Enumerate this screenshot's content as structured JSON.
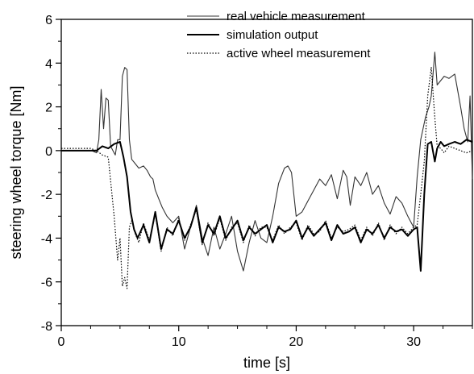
{
  "chart_data": {
    "type": "line",
    "xlabel": "time [s]",
    "ylabel": "steering wheel torque [Nm]",
    "xlim": [
      0,
      35
    ],
    "ylim": [
      -8,
      6
    ],
    "x_ticks": [
      0,
      10,
      20,
      30
    ],
    "y_ticks": [
      -8,
      -6,
      -4,
      -2,
      0,
      2,
      4,
      6
    ],
    "x_minor_step": 2.5,
    "y_minor_step": 1,
    "grid": false,
    "legend_position": "top-right",
    "series": [
      {
        "name": "real vehicle measurement",
        "style": "thin-solid",
        "color": "#333333",
        "x": [
          0,
          2.6,
          3.0,
          3.2,
          3.4,
          3.6,
          3.8,
          4.0,
          4.2,
          4.4,
          4.6,
          4.8,
          5.0,
          5.2,
          5.4,
          5.6,
          5.8,
          6.0,
          6.3,
          6.6,
          7.0,
          7.3,
          7.6,
          7.8,
          8.0,
          8.3,
          8.6,
          9.0,
          9.5,
          10.0,
          10.5,
          11.0,
          11.5,
          12.0,
          12.5,
          13.0,
          13.5,
          14.0,
          14.5,
          15.0,
          15.5,
          16.0,
          16.5,
          17.0,
          17.5,
          18.0,
          18.5,
          19.0,
          19.3,
          19.6,
          20.0,
          20.5,
          21.0,
          21.5,
          22.0,
          22.5,
          23.0,
          23.5,
          24.0,
          24.3,
          24.6,
          25.0,
          25.5,
          26.0,
          26.5,
          27.0,
          27.5,
          28.0,
          28.5,
          29.0,
          29.5,
          30.0,
          30.3,
          30.6,
          31.0,
          31.3,
          31.5,
          31.8,
          32.0,
          32.3,
          32.6,
          33.0,
          33.5,
          34.0,
          34.3,
          34.6,
          34.8,
          35.0
        ],
        "y": [
          0,
          0,
          -0.1,
          0.5,
          2.8,
          1.0,
          2.4,
          2.3,
          0.2,
          0,
          -0.2,
          0.5,
          0.5,
          3.4,
          3.8,
          3.7,
          0.5,
          -0.4,
          -0.6,
          -0.8,
          -0.7,
          -0.9,
          -1.2,
          -1.3,
          -1.8,
          -2.2,
          -2.6,
          -3.0,
          -3.3,
          -3.0,
          -4.5,
          -3.5,
          -2.5,
          -4.0,
          -4.8,
          -3.5,
          -4.5,
          -3.8,
          -3.0,
          -4.6,
          -5.5,
          -4.2,
          -3.2,
          -4.0,
          -4.2,
          -3.0,
          -1.5,
          -0.8,
          -0.7,
          -1.0,
          -3.0,
          -2.8,
          -2.3,
          -1.8,
          -1.3,
          -1.6,
          -1.1,
          -2.2,
          -0.9,
          -1.2,
          -2.5,
          -1.2,
          -1.6,
          -1.0,
          -2.0,
          -1.6,
          -2.4,
          -2.9,
          -2.1,
          -2.4,
          -3.0,
          -3.5,
          -1.2,
          0.5,
          1.5,
          2.0,
          2.5,
          4.5,
          3.0,
          3.2,
          3.4,
          3.3,
          3.5,
          2.0,
          1.0,
          0.4,
          2.5,
          -1.3
        ]
      },
      {
        "name": "simulation output",
        "style": "thick-solid",
        "color": "#000000",
        "x": [
          0,
          3.0,
          3.5,
          4.0,
          4.5,
          5.0,
          5.3,
          5.6,
          5.9,
          6.2,
          6.5,
          7.0,
          7.5,
          8.0,
          8.5,
          9.0,
          9.5,
          10.0,
          10.5,
          11.0,
          11.5,
          12.0,
          12.5,
          13.0,
          13.5,
          14.0,
          14.5,
          15.0,
          15.5,
          16.0,
          16.5,
          17.0,
          17.5,
          18.0,
          18.5,
          19.0,
          19.5,
          20.0,
          20.5,
          21.0,
          21.5,
          22.0,
          22.5,
          23.0,
          23.5,
          24.0,
          24.5,
          25.0,
          25.5,
          26.0,
          26.5,
          27.0,
          27.5,
          28.0,
          28.5,
          29.0,
          29.5,
          30.0,
          30.3,
          30.6,
          30.9,
          31.2,
          31.5,
          31.8,
          32.0,
          32.3,
          32.6,
          33.0,
          33.5,
          34.0,
          34.5,
          35.0
        ],
        "y": [
          0,
          0,
          0.2,
          0.1,
          0.3,
          0.4,
          -0.3,
          -1.2,
          -2.8,
          -3.6,
          -4.0,
          -3.4,
          -4.2,
          -2.8,
          -4.5,
          -3.6,
          -3.8,
          -3.2,
          -4.0,
          -3.5,
          -2.6,
          -4.2,
          -3.4,
          -3.8,
          -3.0,
          -4.0,
          -3.6,
          -3.2,
          -4.1,
          -3.5,
          -3.8,
          -3.6,
          -3.4,
          -4.2,
          -3.5,
          -3.7,
          -3.6,
          -3.2,
          -4.0,
          -3.5,
          -3.9,
          -3.6,
          -3.3,
          -4.1,
          -3.4,
          -3.8,
          -3.7,
          -3.5,
          -4.2,
          -3.6,
          -3.8,
          -3.4,
          -4.0,
          -3.5,
          -3.7,
          -3.6,
          -3.9,
          -3.6,
          -3.5,
          -5.5,
          -2.0,
          0.3,
          0.4,
          -0.5,
          0.1,
          0.4,
          0.2,
          0.3,
          0.4,
          0.3,
          0.5,
          0.4
        ]
      },
      {
        "name": "active wheel measurement",
        "style": "dotted",
        "color": "#000000",
        "x": [
          0,
          2.5,
          3.0,
          3.5,
          4.0,
          4.5,
          4.8,
          5.0,
          5.2,
          5.4,
          5.6,
          5.8,
          6.0,
          6.3,
          6.6,
          7.0,
          7.5,
          8.0,
          8.5,
          9.0,
          9.5,
          10.0,
          10.5,
          11.0,
          11.5,
          12.0,
          12.5,
          13.0,
          13.5,
          14.0,
          14.5,
          15.0,
          15.5,
          16.0,
          16.5,
          17.0,
          17.5,
          18.0,
          18.5,
          19.0,
          19.5,
          20.0,
          20.5,
          21.0,
          21.5,
          22.0,
          22.5,
          23.0,
          23.5,
          24.0,
          24.5,
          25.0,
          25.5,
          26.0,
          26.5,
          27.0,
          27.5,
          28.0,
          28.5,
          29.0,
          29.5,
          30.0,
          30.3,
          30.6,
          30.9,
          31.2,
          31.5,
          31.8,
          32.0,
          32.3,
          32.6,
          33.0,
          33.5,
          34.0,
          34.5,
          35.0
        ],
        "y": [
          0.1,
          0.1,
          0,
          -0.2,
          -0.3,
          -3.0,
          -5.0,
          -4.0,
          -6.2,
          -5.8,
          -6.3,
          -3.5,
          -3.2,
          -3.8,
          -4.2,
          -3.3,
          -4.1,
          -2.9,
          -4.6,
          -3.5,
          -3.9,
          -3.1,
          -4.1,
          -3.4,
          -2.7,
          -4.3,
          -3.3,
          -3.9,
          -3.1,
          -4.1,
          -3.5,
          -3.3,
          -4.2,
          -3.4,
          -3.9,
          -3.5,
          -3.5,
          -4.1,
          -3.4,
          -3.8,
          -3.5,
          -3.3,
          -4.1,
          -3.4,
          -3.8,
          -3.7,
          -3.2,
          -4.0,
          -3.5,
          -3.7,
          -3.6,
          -3.4,
          -4.1,
          -3.5,
          -3.9,
          -3.3,
          -4.1,
          -3.4,
          -3.8,
          -3.5,
          -3.8,
          -3.5,
          -3.4,
          -2.0,
          -0.5,
          2.5,
          3.8,
          1.5,
          0.2,
          0.1,
          -0.1,
          0.2,
          0.1,
          0.0,
          -0.1,
          0.0
        ]
      }
    ]
  }
}
